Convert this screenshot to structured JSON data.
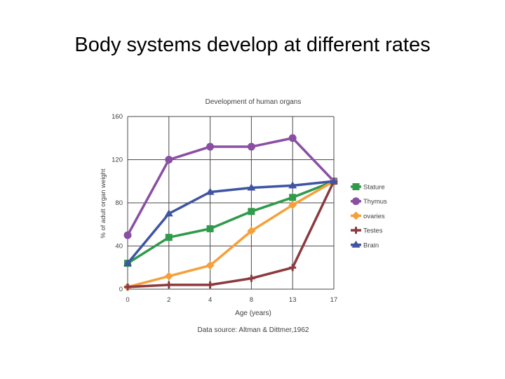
{
  "slide": {
    "title": "Body systems develop at different rates"
  },
  "chart_data": {
    "type": "line",
    "title": "Development of human organs",
    "xlabel": "Age (years)",
    "ylabel": "% of adult organ weight",
    "source": "Data source: Altman & Dittmer,1962",
    "categories": [
      "0",
      "2",
      "4",
      "8",
      "13",
      "17"
    ],
    "ylim": [
      0,
      160
    ],
    "yticks": [
      0,
      40,
      80,
      120,
      160
    ],
    "grid": true,
    "legend_position": "right",
    "series": [
      {
        "name": "Stature",
        "color": "#2e9a4a",
        "marker": "square",
        "values": [
          24,
          48,
          56,
          72,
          85,
          100
        ]
      },
      {
        "name": "Thymus",
        "color": "#8a4fa3",
        "marker": "circle",
        "values": [
          50,
          120,
          132,
          132,
          140,
          100
        ]
      },
      {
        "name": "ovaries",
        "color": "#f5a03a",
        "marker": "diamond",
        "values": [
          2,
          12,
          22,
          54,
          78,
          100
        ]
      },
      {
        "name": "Testes",
        "color": "#8c3a3e",
        "marker": "plus",
        "values": [
          2,
          4,
          4,
          10,
          20,
          100
        ]
      },
      {
        "name": "Brain",
        "color": "#3f54a3",
        "marker": "triangle",
        "values": [
          24,
          70,
          90,
          94,
          96,
          100
        ]
      }
    ]
  }
}
